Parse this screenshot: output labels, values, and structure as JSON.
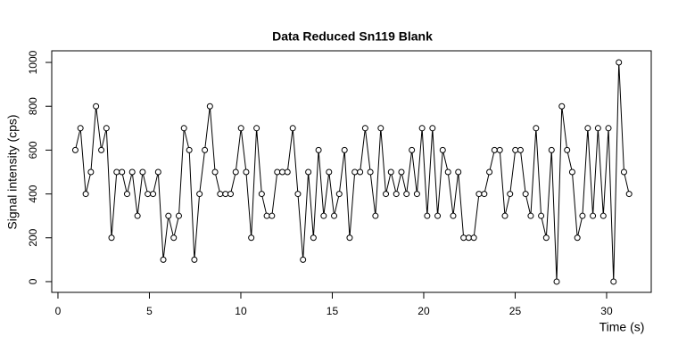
{
  "chart_data": {
    "type": "line",
    "title": "Data Reduced Sn119 Blank",
    "x_label": "Time (s)",
    "y_label": "Signal intensity (cps)",
    "markers": true,
    "color": "#000000",
    "x": [
      0.95,
      1.23,
      1.52,
      1.8,
      2.08,
      2.37,
      2.65,
      2.93,
      3.21,
      3.5,
      3.78,
      4.06,
      4.35,
      4.63,
      4.91,
      5.2,
      5.48,
      5.76,
      6.04,
      6.33,
      6.61,
      6.89,
      7.18,
      7.46,
      7.74,
      8.03,
      8.31,
      8.59,
      8.87,
      9.16,
      9.44,
      9.72,
      10.01,
      10.29,
      10.57,
      10.86,
      11.14,
      11.42,
      11.7,
      11.99,
      12.27,
      12.55,
      12.84,
      13.12,
      13.4,
      13.69,
      13.97,
      14.25,
      14.53,
      14.82,
      15.1,
      15.38,
      15.67,
      15.95,
      16.23,
      16.52,
      16.8,
      17.08,
      17.36,
      17.65,
      17.93,
      18.21,
      18.5,
      18.78,
      19.06,
      19.35,
      19.63,
      19.91,
      20.19,
      20.48,
      20.76,
      21.04,
      21.33,
      21.61,
      21.89,
      22.18,
      22.46,
      22.74,
      23.02,
      23.31,
      23.59,
      23.87,
      24.16,
      24.44,
      24.72,
      25.01,
      25.29,
      25.57,
      25.85,
      26.14,
      26.42,
      26.7,
      26.99,
      27.27,
      27.55,
      27.84,
      28.12,
      28.4,
      28.68,
      28.97,
      29.25,
      29.53,
      29.82,
      30.1,
      30.38,
      30.67,
      30.95,
      31.23
    ],
    "values": [
      600,
      700,
      400,
      500,
      800,
      600,
      700,
      200,
      500,
      500,
      400,
      500,
      300,
      500,
      400,
      400,
      500,
      100,
      300,
      200,
      300,
      700,
      600,
      100,
      400,
      600,
      800,
      500,
      400,
      400,
      400,
      500,
      700,
      500,
      200,
      700,
      400,
      300,
      300,
      500,
      500,
      500,
      700,
      400,
      100,
      500,
      200,
      600,
      300,
      500,
      300,
      400,
      600,
      200,
      500,
      500,
      700,
      500,
      300,
      700,
      400,
      500,
      400,
      500,
      400,
      600,
      400,
      700,
      300,
      700,
      300,
      600,
      500,
      300,
      500,
      200,
      200,
      200,
      400,
      400,
      500,
      600,
      600,
      300,
      400,
      600,
      600,
      400,
      300,
      700,
      300,
      200,
      600,
      0,
      800,
      600,
      500,
      200,
      300,
      700,
      300,
      700,
      300,
      700,
      0,
      1000,
      500,
      400
    ],
    "xlim": [
      -0.34,
      32.44
    ],
    "ylim": [
      -49,
      1053
    ],
    "xticks": [
      0,
      5,
      10,
      15,
      20,
      25,
      30
    ],
    "yticks": [
      0,
      200,
      400,
      600,
      800,
      1000
    ]
  }
}
